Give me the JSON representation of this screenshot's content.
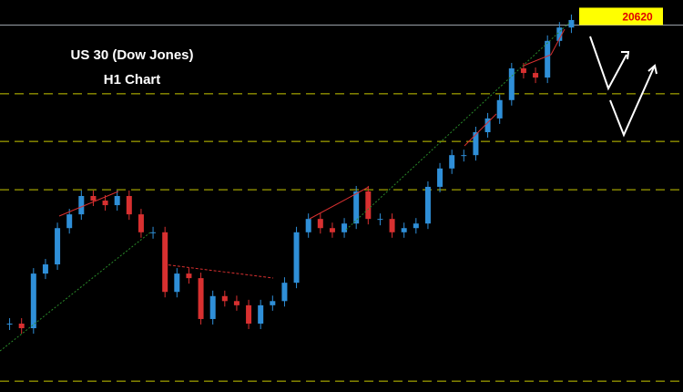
{
  "chart_data": {
    "type": "candlestick",
    "title": "US 30 (Dow Jones)",
    "subtitle": "H1 Chart",
    "ylim": [
      19740,
      20680
    ],
    "price_line": {
      "value": 20620,
      "label": "20620"
    },
    "levels": [
      20455,
      20341,
      20225,
      19766
    ],
    "up_color": "#2f8fd8",
    "down_color": "#d83030",
    "series": [
      {
        "name": "US 30",
        "color": "#2f8fd8",
        "values": [
          19904,
          19893,
          20024,
          20046,
          20133,
          20166,
          20210,
          20199,
          20188,
          20210,
          20166,
          20123,
          20123,
          19980,
          20024,
          20013,
          19915,
          19970,
          19958,
          19948,
          19904,
          19948,
          19958,
          20002,
          20123,
          20155,
          20133,
          20123,
          20144,
          20221,
          20155,
          20155,
          20123,
          20133,
          20144,
          20232,
          20276,
          20308,
          20308,
          20363,
          20396,
          20440,
          20516,
          20505,
          20494,
          20582,
          20614,
          20632
        ]
      }
    ]
  }
}
